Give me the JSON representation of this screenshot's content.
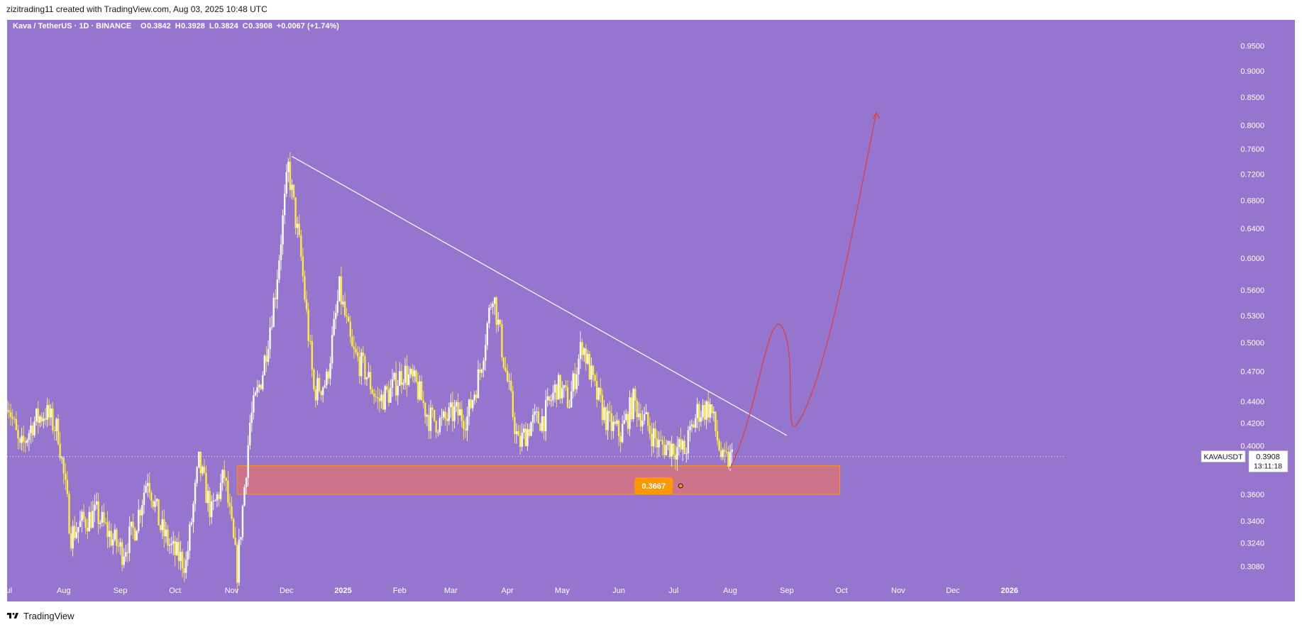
{
  "header": {
    "credit": "zizitrading11 created with TradingView.com, Aug 03, 2025 10:48 UTC"
  },
  "footer": {
    "brand": "TradingView"
  },
  "colors": {
    "background": "#9575cd",
    "bull": "#ffffff",
    "bear": "#ffeb3b",
    "trendline": "#ffffff",
    "projection": "#e53935",
    "zone_fill": "#e57373",
    "zone_stroke": "#ff9800",
    "label_bg": "#ff9800"
  },
  "chart_data": {
    "type": "candlestick",
    "symbol": "Kava / TetherUS · 1D · BINANCE",
    "ohlc_legend": {
      "open_label": "O",
      "open": "0.3842",
      "high_label": "H",
      "high": "0.3928",
      "low_label": "L",
      "low": "0.3824",
      "close_label": "C",
      "close": "0.3908",
      "change": "+0.0067 (+1.74%)"
    },
    "price_scale": "log",
    "ylim": [
      0.299,
      1.005
    ],
    "y_ticks": [
      "0.9500",
      "0.9000",
      "0.8500",
      "0.8000",
      "0.7600",
      "0.7200",
      "0.6800",
      "0.6400",
      "0.6000",
      "0.5600",
      "0.5300",
      "0.5000",
      "0.4700",
      "0.4400",
      "0.4200",
      "0.4000",
      "0.3600",
      "0.3400",
      "0.3240",
      "0.3080"
    ],
    "x_start": "2024-07-01",
    "x_end": "2026-01-31",
    "x_ticks": [
      {
        "label": "Jul",
        "date": "2024-07-01"
      },
      {
        "label": "Aug",
        "date": "2024-08-01"
      },
      {
        "label": "Sep",
        "date": "2024-09-01"
      },
      {
        "label": "Oct",
        "date": "2024-10-01"
      },
      {
        "label": "Nov",
        "date": "2024-11-01"
      },
      {
        "label": "Dec",
        "date": "2024-12-01"
      },
      {
        "label": "2025",
        "date": "2025-01-01"
      },
      {
        "label": "Feb",
        "date": "2025-02-01"
      },
      {
        "label": "Mar",
        "date": "2025-03-01"
      },
      {
        "label": "Apr",
        "date": "2025-04-01"
      },
      {
        "label": "May",
        "date": "2025-05-01"
      },
      {
        "label": "Jun",
        "date": "2025-06-01"
      },
      {
        "label": "Jul",
        "date": "2025-07-01"
      },
      {
        "label": "Aug",
        "date": "2025-08-01"
      },
      {
        "label": "Sep",
        "date": "2025-09-01"
      },
      {
        "label": "Oct",
        "date": "2025-10-01"
      },
      {
        "label": "Nov",
        "date": "2025-11-01"
      },
      {
        "label": "Dec",
        "date": "2025-12-01"
      },
      {
        "label": "2026",
        "date": "2026-01-01"
      }
    ],
    "close_path": [
      {
        "date": "2024-07-01",
        "close": 0.445
      },
      {
        "date": "2024-07-08",
        "close": 0.395
      },
      {
        "date": "2024-07-15",
        "close": 0.42
      },
      {
        "date": "2024-07-22",
        "close": 0.43
      },
      {
        "date": "2024-07-29",
        "close": 0.412
      },
      {
        "date": "2024-08-05",
        "close": 0.33
      },
      {
        "date": "2024-08-12",
        "close": 0.34
      },
      {
        "date": "2024-08-19",
        "close": 0.345
      },
      {
        "date": "2024-08-26",
        "close": 0.33
      },
      {
        "date": "2024-09-02",
        "close": 0.318
      },
      {
        "date": "2024-09-09",
        "close": 0.335
      },
      {
        "date": "2024-09-16",
        "close": 0.375
      },
      {
        "date": "2024-09-23",
        "close": 0.335
      },
      {
        "date": "2024-09-30",
        "close": 0.318
      },
      {
        "date": "2024-10-07",
        "close": 0.31
      },
      {
        "date": "2024-10-14",
        "close": 0.385
      },
      {
        "date": "2024-10-21",
        "close": 0.345
      },
      {
        "date": "2024-10-28",
        "close": 0.375
      },
      {
        "date": "2024-11-04",
        "close": 0.305
      },
      {
        "date": "2024-11-11",
        "close": 0.42
      },
      {
        "date": "2024-11-18",
        "close": 0.47
      },
      {
        "date": "2024-11-25",
        "close": 0.56
      },
      {
        "date": "2024-12-02",
        "close": 0.73
      },
      {
        "date": "2024-12-09",
        "close": 0.6
      },
      {
        "date": "2024-12-16",
        "close": 0.45
      },
      {
        "date": "2024-12-23",
        "close": 0.46
      },
      {
        "date": "2024-12-30",
        "close": 0.56
      },
      {
        "date": "2025-01-06",
        "close": 0.49
      },
      {
        "date": "2025-01-13",
        "close": 0.47
      },
      {
        "date": "2025-01-20",
        "close": 0.44
      },
      {
        "date": "2025-01-27",
        "close": 0.45
      },
      {
        "date": "2025-02-03",
        "close": 0.47
      },
      {
        "date": "2025-02-10",
        "close": 0.455
      },
      {
        "date": "2025-02-17",
        "close": 0.425
      },
      {
        "date": "2025-02-24",
        "close": 0.42
      },
      {
        "date": "2025-03-03",
        "close": 0.43
      },
      {
        "date": "2025-03-10",
        "close": 0.425
      },
      {
        "date": "2025-03-17",
        "close": 0.47
      },
      {
        "date": "2025-03-24",
        "close": 0.56
      },
      {
        "date": "2025-03-31",
        "close": 0.47
      },
      {
        "date": "2025-04-07",
        "close": 0.4
      },
      {
        "date": "2025-04-14",
        "close": 0.42
      },
      {
        "date": "2025-04-21",
        "close": 0.425
      },
      {
        "date": "2025-04-28",
        "close": 0.455
      },
      {
        "date": "2025-05-05",
        "close": 0.44
      },
      {
        "date": "2025-05-12",
        "close": 0.5
      },
      {
        "date": "2025-05-19",
        "close": 0.45
      },
      {
        "date": "2025-05-26",
        "close": 0.42
      },
      {
        "date": "2025-06-02",
        "close": 0.41
      },
      {
        "date": "2025-06-09",
        "close": 0.44
      },
      {
        "date": "2025-06-16",
        "close": 0.42
      },
      {
        "date": "2025-06-23",
        "close": 0.4
      },
      {
        "date": "2025-06-30",
        "close": 0.4
      },
      {
        "date": "2025-07-07",
        "close": 0.395
      },
      {
        "date": "2025-07-14",
        "close": 0.43
      },
      {
        "date": "2025-07-21",
        "close": 0.435
      },
      {
        "date": "2025-07-28",
        "close": 0.385
      },
      {
        "date": "2025-08-03",
        "close": 0.3908
      }
    ],
    "trendline": [
      {
        "date": "2024-12-04",
        "price": 0.748
      },
      {
        "date": "2025-09-01",
        "price": 0.409
      }
    ],
    "demand_zone": {
      "date_from": "2024-11-04",
      "date_to": "2025-09-30",
      "price_low": 0.36,
      "price_high": 0.383
    },
    "demand_label": {
      "date": "2025-07-01",
      "price": 0.3667,
      "text": "0.3667"
    },
    "projection": [
      {
        "date": "2025-08-01",
        "price": 0.381
      },
      {
        "date": "2025-08-30",
        "price": 0.515
      },
      {
        "date": "2025-09-07",
        "price": 0.42
      },
      {
        "date": "2025-10-20",
        "price": 0.822
      }
    ],
    "last_price_line": 0.3908,
    "current_price_label": {
      "ticker": "KAVAUSDT",
      "price": "0.3908",
      "countdown": "13:11:18"
    }
  }
}
